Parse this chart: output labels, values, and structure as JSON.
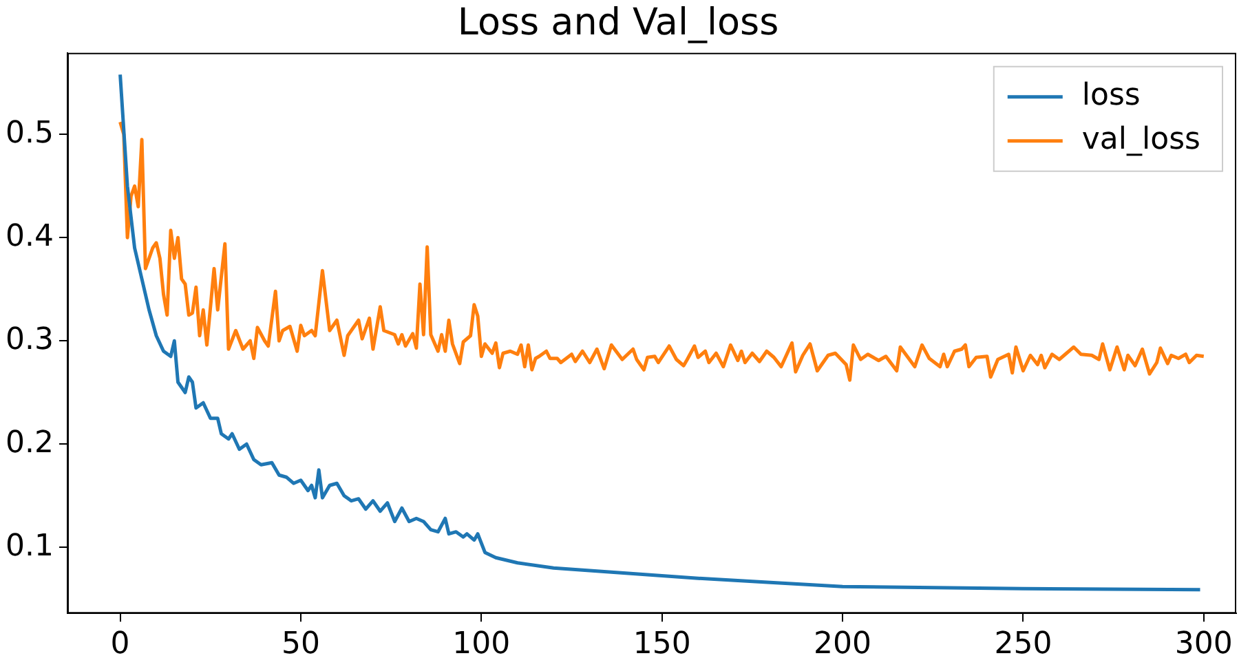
{
  "chart_data": {
    "type": "line",
    "title": "Loss and Val_loss",
    "xlim": [
      -14.6,
      309
    ],
    "ylim": [
      0.036,
      0.579
    ],
    "xticks": [
      0,
      50,
      100,
      150,
      200,
      250,
      300
    ],
    "yticks": [
      0.1,
      0.2,
      0.3,
      0.4,
      0.5
    ],
    "grid": false,
    "legend": "top right",
    "marker": "none",
    "line_style": "solid",
    "series": [
      {
        "name": "loss",
        "color": "#1f77b4",
        "x": [
          0,
          2,
          4,
          6,
          8,
          10,
          12,
          14,
          15,
          16,
          18,
          19,
          20,
          21,
          23,
          25,
          27,
          28,
          30,
          31,
          33,
          35,
          37,
          39,
          42,
          44,
          46,
          48,
          50,
          52,
          53,
          54,
          55,
          56,
          58,
          60,
          62,
          64,
          66,
          68,
          70,
          72,
          74,
          76,
          78,
          80,
          82,
          84,
          86,
          88,
          90,
          91,
          93,
          95,
          96,
          98,
          99,
          101,
          104,
          110,
          120,
          140,
          160,
          180,
          200,
          250,
          299
        ],
        "values": [
          0.558,
          0.45,
          0.39,
          0.36,
          0.33,
          0.305,
          0.29,
          0.285,
          0.3,
          0.26,
          0.25,
          0.265,
          0.26,
          0.235,
          0.24,
          0.225,
          0.225,
          0.21,
          0.205,
          0.21,
          0.195,
          0.2,
          0.185,
          0.18,
          0.182,
          0.17,
          0.168,
          0.162,
          0.165,
          0.155,
          0.16,
          0.148,
          0.175,
          0.148,
          0.16,
          0.162,
          0.15,
          0.145,
          0.147,
          0.137,
          0.145,
          0.135,
          0.143,
          0.125,
          0.138,
          0.125,
          0.128,
          0.125,
          0.117,
          0.115,
          0.128,
          0.113,
          0.115,
          0.11,
          0.113,
          0.107,
          0.113,
          0.095,
          0.09,
          0.085,
          0.08,
          0.075,
          0.07,
          0.066,
          0.062,
          0.06,
          0.059
        ]
      },
      {
        "name": "val_loss",
        "color": "#ff7f0e",
        "x": [
          0,
          1,
          2,
          3,
          4,
          5,
          6,
          7,
          9,
          10,
          11,
          12,
          13,
          14,
          15,
          16,
          17,
          18,
          19,
          20,
          21,
          22,
          23,
          24,
          26,
          27,
          29,
          30,
          32,
          34,
          36,
          37,
          38,
          40,
          41,
          43,
          44,
          45,
          47,
          49,
          50,
          51,
          53,
          54,
          56,
          58,
          60,
          62,
          63,
          66,
          67,
          69,
          70,
          72,
          73,
          76,
          77,
          78,
          79,
          81,
          82,
          83,
          84,
          85,
          86,
          88,
          89,
          90,
          91,
          92,
          94,
          95,
          97,
          98,
          99,
          100,
          101,
          103,
          104,
          105,
          106,
          108,
          110,
          111,
          112,
          113,
          114,
          115,
          116,
          118,
          119,
          121,
          122,
          125,
          126,
          128,
          130,
          132,
          134,
          136,
          139,
          142,
          143,
          145,
          146,
          148,
          149,
          152,
          154,
          156,
          157,
          159,
          160,
          162,
          163,
          165,
          167,
          169,
          171,
          172,
          173,
          175,
          177,
          179,
          181,
          183,
          186,
          187,
          189,
          191,
          193,
          196,
          198,
          201,
          202,
          203,
          205,
          207,
          210,
          212,
          215,
          216,
          220,
          222,
          224,
          227,
          228,
          229,
          231,
          233,
          234,
          235,
          237,
          240,
          241,
          243,
          246,
          247,
          248,
          250,
          252,
          254,
          255,
          256,
          258,
          260,
          262,
          264,
          266,
          269,
          271,
          272,
          274,
          276,
          278,
          279,
          281,
          283,
          285,
          287,
          288,
          290,
          291,
          293,
          295,
          296,
          298,
          300
        ],
        "values": [
          0.512,
          0.5,
          0.4,
          0.44,
          0.45,
          0.43,
          0.495,
          0.37,
          0.39,
          0.395,
          0.38,
          0.345,
          0.325,
          0.407,
          0.38,
          0.4,
          0.36,
          0.355,
          0.325,
          0.327,
          0.352,
          0.305,
          0.33,
          0.296,
          0.37,
          0.33,
          0.394,
          0.292,
          0.31,
          0.292,
          0.3,
          0.283,
          0.313,
          0.3,
          0.295,
          0.348,
          0.3,
          0.31,
          0.314,
          0.29,
          0.315,
          0.305,
          0.31,
          0.305,
          0.368,
          0.31,
          0.32,
          0.286,
          0.305,
          0.32,
          0.302,
          0.322,
          0.292,
          0.333,
          0.31,
          0.306,
          0.297,
          0.306,
          0.295,
          0.307,
          0.293,
          0.355,
          0.306,
          0.391,
          0.306,
          0.29,
          0.306,
          0.29,
          0.32,
          0.297,
          0.278,
          0.299,
          0.305,
          0.335,
          0.324,
          0.285,
          0.297,
          0.288,
          0.298,
          0.274,
          0.288,
          0.29,
          0.287,
          0.296,
          0.275,
          0.296,
          0.272,
          0.283,
          0.285,
          0.29,
          0.283,
          0.283,
          0.279,
          0.287,
          0.28,
          0.29,
          0.279,
          0.292,
          0.273,
          0.296,
          0.282,
          0.292,
          0.282,
          0.272,
          0.284,
          0.285,
          0.279,
          0.295,
          0.282,
          0.276,
          0.282,
          0.295,
          0.284,
          0.29,
          0.279,
          0.288,
          0.275,
          0.296,
          0.281,
          0.29,
          0.279,
          0.288,
          0.28,
          0.29,
          0.284,
          0.275,
          0.298,
          0.27,
          0.286,
          0.297,
          0.271,
          0.286,
          0.288,
          0.277,
          0.262,
          0.296,
          0.282,
          0.287,
          0.281,
          0.285,
          0.271,
          0.294,
          0.275,
          0.296,
          0.283,
          0.275,
          0.287,
          0.275,
          0.29,
          0.292,
          0.296,
          0.275,
          0.284,
          0.285,
          0.265,
          0.282,
          0.287,
          0.269,
          0.294,
          0.271,
          0.286,
          0.277,
          0.286,
          0.274,
          0.287,
          0.282,
          0.288,
          0.294,
          0.287,
          0.286,
          0.282,
          0.297,
          0.272,
          0.294,
          0.272,
          0.286,
          0.276,
          0.292,
          0.268,
          0.279,
          0.293,
          0.278,
          0.286,
          0.283,
          0.287,
          0.279,
          0.286,
          0.285
        ]
      }
    ]
  }
}
